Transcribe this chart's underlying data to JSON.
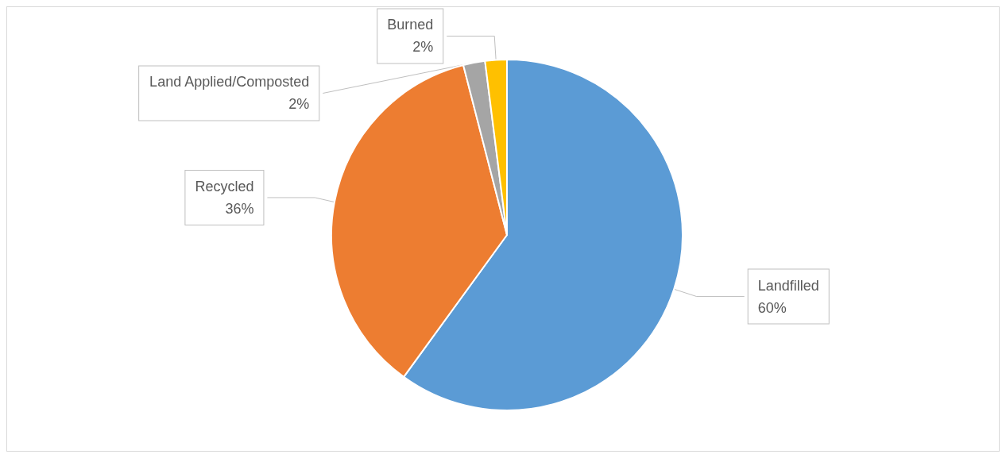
{
  "chart_data": {
    "type": "pie",
    "categories": [
      "Landfilled",
      "Recycled",
      "Land Applied/Composted",
      "Burned"
    ],
    "values": [
      60,
      36,
      2,
      2
    ],
    "colors": [
      "#5b9bd5",
      "#ed7d31",
      "#a5a5a5",
      "#ffc000"
    ],
    "value_labels": [
      "60%",
      "36%",
      "2%",
      "2%"
    ],
    "legend": false
  }
}
